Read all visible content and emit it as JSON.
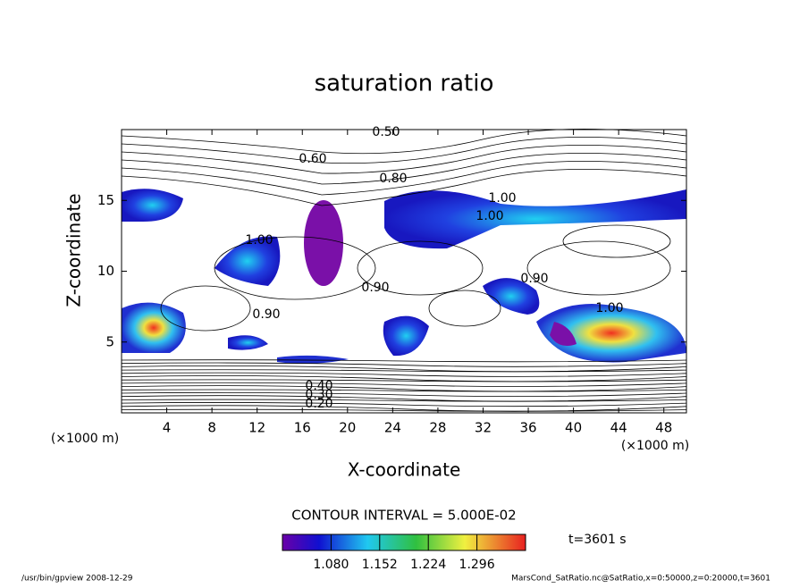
{
  "chart_data": {
    "type": "contour",
    "title": "saturation ratio",
    "x_label": "X-coordinate",
    "y_label": "Z-coordinate",
    "x_unit": "(×1000 m)",
    "x_unit_right": "(×1000 m)",
    "xlim": [
      0,
      50
    ],
    "ylim": [
      0,
      20
    ],
    "xticks": [
      4,
      8,
      12,
      16,
      20,
      24,
      28,
      32,
      36,
      40,
      44,
      48
    ],
    "yticks": [
      5,
      10,
      15
    ],
    "contour_interval": "CONTOUR INTERVAL = 5.000E-02",
    "time_label": "t=3601 s",
    "contour_labels": [
      {
        "value": 0.5,
        "label": "0.50"
      },
      {
        "value": 0.6,
        "label": "0.60"
      },
      {
        "value": 0.8,
        "label": "0.80"
      },
      {
        "value": 1.0,
        "label": "1.00"
      },
      {
        "value": 1.0,
        "label": "1.00"
      },
      {
        "value": 1.0,
        "label": "1.00"
      },
      {
        "value": 0.9,
        "label": "0.90"
      },
      {
        "value": 0.9,
        "label": "0.90"
      },
      {
        "value": 1.0,
        "label": "1.00"
      },
      {
        "value": 0.9,
        "label": "0.90"
      },
      {
        "value": 0.4,
        "label": "0.40"
      },
      {
        "value": 0.3,
        "label": "0.30"
      },
      {
        "value": 0.2,
        "label": "0.20"
      }
    ],
    "colorbar": {
      "lim": [
        1.008,
        1.368
      ],
      "ticks": [
        {
          "value": 1.08,
          "label": "1.080"
        },
        {
          "value": 1.152,
          "label": "1.152"
        },
        {
          "value": 1.224,
          "label": "1.224"
        },
        {
          "value": 1.296,
          "label": "1.296"
        }
      ]
    },
    "footer_left": "/usr/bin/gpview  2008-12-29",
    "footer_right": "MarsCond_SatRatio.nc@SatRatio,x=0:50000,z=0:20000,t=3601"
  }
}
